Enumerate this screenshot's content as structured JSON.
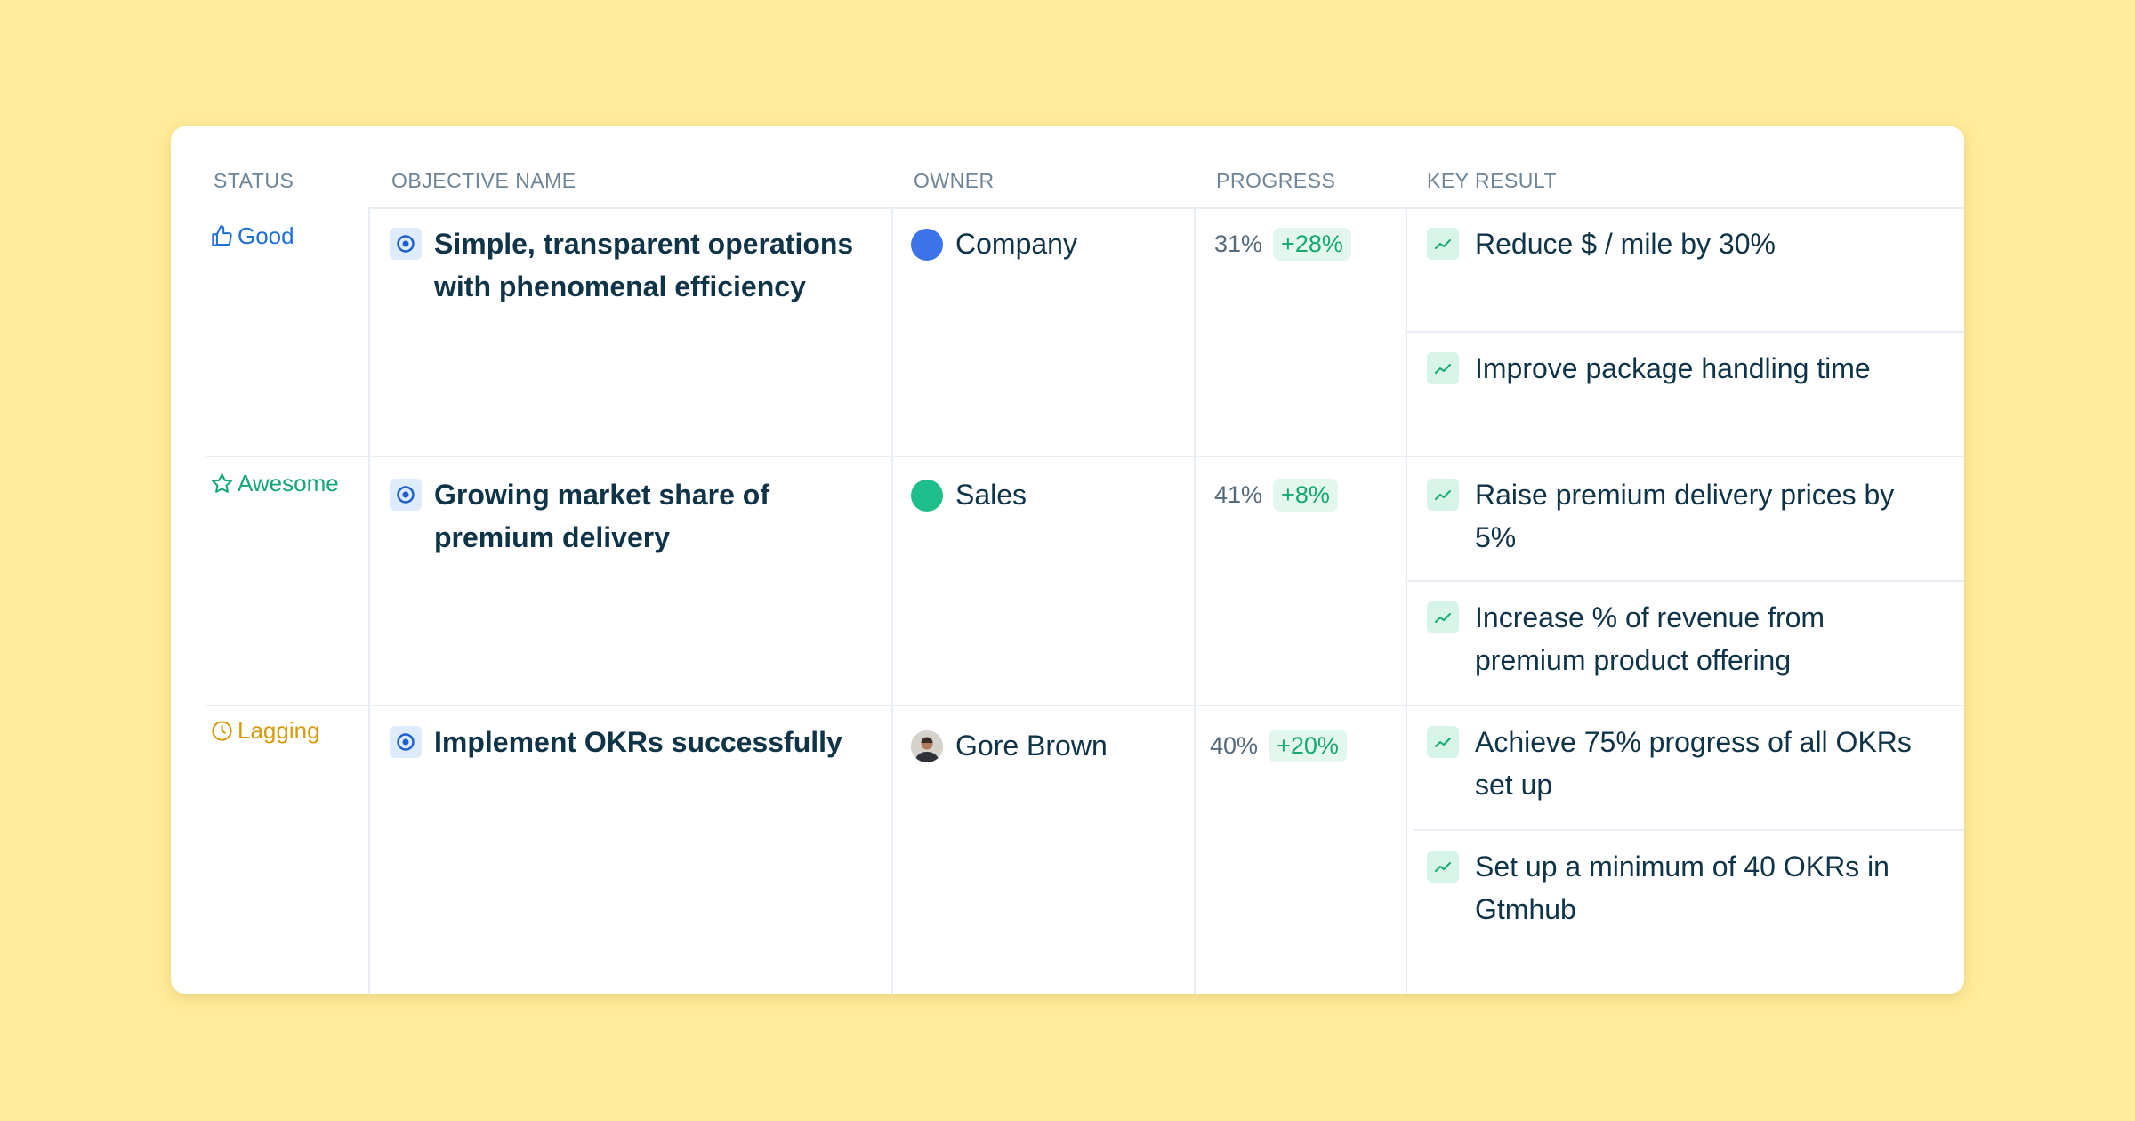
{
  "columns": {
    "status": "STATUS",
    "objective": "OBJECTIVE NAME",
    "owner": "OWNER",
    "progress": "PROGRESS",
    "key_result": "KEY RESULT"
  },
  "rows": [
    {
      "status": {
        "label": "Good",
        "icon": "thumbs-up-icon",
        "color": "#1E6FD9"
      },
      "objective": "Simple, transparent operations with phenomenal efficiency",
      "owner": {
        "name": "Company",
        "avatar": "blue-dot",
        "color": "#3B73E8"
      },
      "progress": {
        "value": "31%",
        "delta": "+28%"
      },
      "key_results": [
        "Reduce $ / mile by 30%",
        "Improve package handling time"
      ]
    },
    {
      "status": {
        "label": "Awesome",
        "icon": "star-icon",
        "color": "#14A874"
      },
      "objective": "Growing market share of premium delivery",
      "owner": {
        "name": "Sales",
        "avatar": "green-dot",
        "color": "#1DBE8A"
      },
      "progress": {
        "value": "41%",
        "delta": "+8%"
      },
      "key_results": [
        "Raise premium delivery prices by 5%",
        "Increase % of revenue from premium product offering"
      ]
    },
    {
      "status": {
        "label": "Lagging",
        "icon": "clock-icon",
        "color": "#D79A0A"
      },
      "objective": "Implement OKRs successfully",
      "owner": {
        "name": "Gore Brown",
        "avatar": "user-photo"
      },
      "progress": {
        "value": "40%",
        "delta": "+20%"
      },
      "key_results": [
        "Achieve 75% progress of all OKRs set up",
        "Set up a minimum of 40 OKRs in Gtmhub"
      ]
    }
  ]
}
